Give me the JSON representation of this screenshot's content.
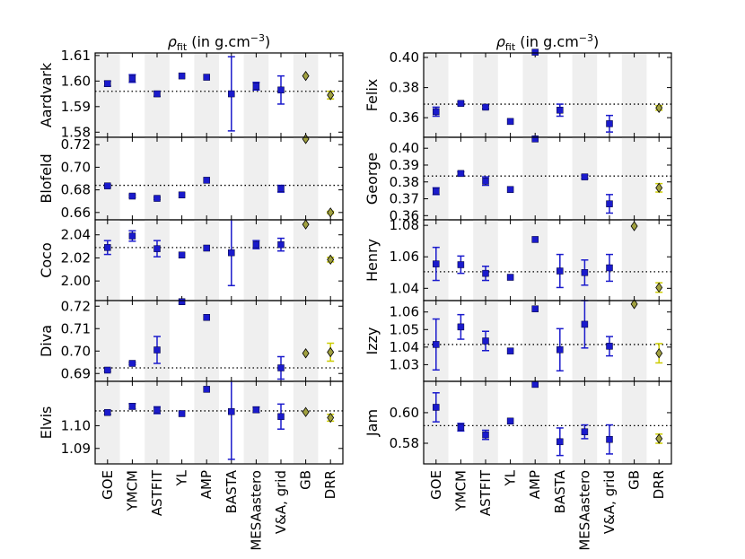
{
  "chart_data": [
    {
      "type": "scatter",
      "title": "ρ_fit (in g.cm⁻³)",
      "categories": [
        "GOE",
        "YMCM",
        "ASTFIT",
        "YL",
        "AMP",
        "BASTA",
        "MESAastero",
        "V&A, grid",
        "GB",
        "DRR"
      ],
      "panels": [
        {
          "name": "Aardvark",
          "ylim": [
            1.578,
            1.611
          ],
          "yticks": [
            "1.58",
            "1.59",
            "1.60",
            "1.61"
          ],
          "ref": 1.596,
          "values": [
            1.599,
            1.601,
            1.595,
            1.602,
            1.6015,
            1.595,
            1.598,
            1.5965,
            1.602,
            1.5945
          ],
          "errors": [
            0.001,
            0.0015,
            0.001,
            null,
            null,
            0.0145,
            0.0015,
            0.0055,
            null,
            0.0015
          ]
        },
        {
          "name": "Blofeld",
          "ylim": [
            0.6535,
            0.7265
          ],
          "yticks": [
            "0.66",
            "0.68",
            "0.70",
            "0.72"
          ],
          "ref": 0.684,
          "values": [
            0.6835,
            0.6745,
            0.6725,
            0.6755,
            0.6885,
            null,
            null,
            0.681,
            0.725,
            0.66
          ],
          "errors": [
            0.001,
            0.001,
            0.001,
            null,
            null,
            null,
            null,
            0.003,
            null,
            0.001
          ]
        },
        {
          "name": "Coco",
          "ylim": [
            1.983,
            2.053
          ],
          "yticks": [
            "2.00",
            "2.02",
            "2.04"
          ],
          "ref": 2.029,
          "values": [
            2.029,
            2.039,
            2.028,
            2.0225,
            2.0285,
            2.0245,
            2.0315,
            2.0315,
            2.049,
            2.0185
          ],
          "errors": [
            0.006,
            0.0045,
            0.007,
            null,
            null,
            0.0285,
            0.0035,
            0.0055,
            null,
            0.002
          ]
        },
        {
          "name": "Diva",
          "ylim": [
            0.6865,
            0.7225
          ],
          "yticks": [
            "0.69",
            "0.70",
            "0.71",
            "0.72"
          ],
          "ref": 0.6925,
          "values": [
            0.6915,
            0.6945,
            0.7005,
            0.722,
            0.715,
            null,
            null,
            0.6925,
            0.699,
            0.6995
          ],
          "errors": [
            0.0005,
            0.0005,
            0.006,
            null,
            null,
            null,
            null,
            0.005,
            null,
            0.004
          ]
        },
        {
          "name": "Elvis",
          "ylim": [
            1.0832,
            1.1195
          ],
          "yticks": [
            "1.09",
            "1.10"
          ],
          "ref": 1.1065,
          "values": [
            1.1058,
            1.1085,
            1.1068,
            1.1053,
            1.116,
            1.1062,
            1.107,
            1.104,
            1.106,
            1.1035
          ],
          "errors": [
            0.0008,
            0.0012,
            0.0015,
            null,
            null,
            0.021,
            0.0012,
            0.0055,
            null,
            0.0015
          ]
        }
      ]
    },
    {
      "type": "scatter",
      "title": "ρ_fit (in g.cm⁻³)",
      "categories": [
        "GOE",
        "YMCM",
        "ASTFIT",
        "YL",
        "AMP",
        "BASTA",
        "MESAastero",
        "V&A, grid",
        "GB",
        "DRR"
      ],
      "panels": [
        {
          "name": "Felix",
          "ylim": [
            0.347,
            0.403
          ],
          "yticks": [
            "0.36",
            "0.38",
            "0.40"
          ],
          "ref": 0.369,
          "values": [
            0.364,
            0.3695,
            0.367,
            0.3575,
            0.4035,
            0.365,
            null,
            0.356,
            null,
            0.3665
          ],
          "errors": [
            0.003,
            0.001,
            0.001,
            null,
            null,
            0.004,
            null,
            0.0055,
            null,
            0.0015
          ]
        },
        {
          "name": "George",
          "ylim": [
            0.3575,
            0.4065
          ],
          "yticks": [
            "0.36",
            "0.37",
            "0.38",
            "0.39",
            "0.40"
          ],
          "ref": 0.3835,
          "values": [
            0.3745,
            0.385,
            0.3805,
            0.3755,
            0.4055,
            null,
            0.383,
            0.367,
            null,
            0.3765
          ],
          "errors": [
            0.002,
            0.001,
            0.0025,
            null,
            null,
            null,
            0.001,
            0.0055,
            null,
            0.0025
          ]
        },
        {
          "name": "Henry",
          "ylim": [
            1.0322,
            1.0835
          ],
          "yticks": [
            "1.04",
            "1.06",
            "1.08"
          ],
          "ref": 1.0505,
          "values": [
            1.0555,
            1.055,
            1.0495,
            1.047,
            1.071,
            1.051,
            1.05,
            1.053,
            1.0795,
            1.0405
          ],
          "errors": [
            0.0105,
            0.0055,
            0.0045,
            null,
            null,
            0.0105,
            0.008,
            0.0085,
            null,
            0.003
          ]
        },
        {
          "name": "Izzy",
          "ylim": [
            1.0205,
            1.0665
          ],
          "yticks": [
            "1.03",
            "1.04",
            "1.05",
            "1.06"
          ],
          "ref": 1.0415,
          "values": [
            1.0415,
            1.0515,
            1.0435,
            1.0378,
            1.0618,
            1.0385,
            1.053,
            1.0405,
            1.0645,
            1.0365
          ],
          "errors": [
            0.0145,
            0.007,
            0.0055,
            null,
            null,
            0.012,
            0.0135,
            0.0055,
            null,
            0.0055
          ]
        },
        {
          "name": "Jam",
          "ylim": [
            0.5665,
            0.6205
          ],
          "yticks": [
            "0.58",
            "0.60"
          ],
          "ref": 0.5915,
          "values": [
            0.6035,
            0.5905,
            0.5855,
            0.5945,
            0.6185,
            0.581,
            0.5875,
            0.5825,
            null,
            0.583
          ],
          "errors": [
            0.0095,
            0.0025,
            0.003,
            null,
            null,
            0.009,
            0.0045,
            0.0095,
            null,
            0.003
          ]
        }
      ]
    }
  ]
}
